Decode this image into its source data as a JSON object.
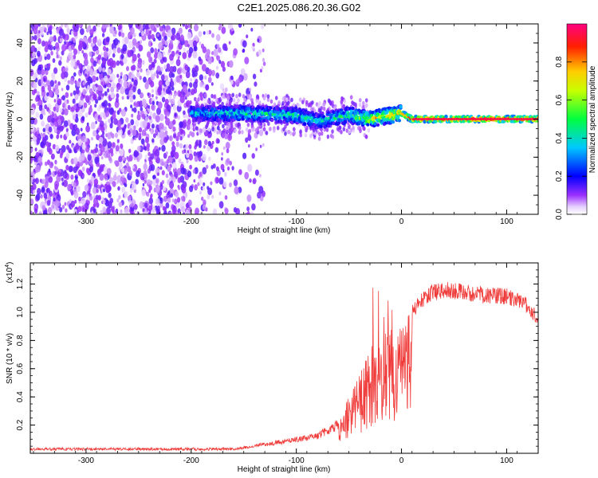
{
  "title": "C2E1.2025.086.20.36.G02",
  "chart_data": [
    {
      "type": "heatmap",
      "xlabel": "Height of straight line (km)",
      "ylabel": "Frequency (Hz)",
      "xlim": [
        -353,
        130
      ],
      "ylim": [
        -50,
        50
      ],
      "x_ticks": [
        -300,
        -200,
        -100,
        0,
        100
      ],
      "y_ticks": [
        -40,
        -20,
        0,
        20,
        40
      ],
      "colorbar": {
        "label": "Normalized spectral amplitude",
        "range": [
          0,
          1
        ],
        "ticks": [
          "0.0",
          "0.2",
          "0.4",
          "0.6",
          "0.8"
        ]
      },
      "ridge": [
        {
          "x": -200,
          "freq": 3,
          "amp": 0.35
        },
        {
          "x": -150,
          "freq": 3,
          "amp": 0.45
        },
        {
          "x": -100,
          "freq": 2,
          "amp": 0.45
        },
        {
          "x": -80,
          "freq": -1,
          "amp": 0.4
        },
        {
          "x": -50,
          "freq": 2,
          "amp": 0.5
        },
        {
          "x": -30,
          "freq": 0,
          "amp": 0.7
        },
        {
          "x": 0,
          "freq": 3,
          "amp": 0.8
        },
        {
          "x": 10,
          "freq": 0,
          "amp": 0.95
        },
        {
          "x": 130,
          "freq": 0,
          "amp": 0.95
        }
      ]
    },
    {
      "type": "line",
      "xlabel": "Height of straight line (km)",
      "ylabel": "SNR (10 * v/v)",
      "y_scale_label": "(x10",
      "y_scale_exp": "4",
      "y_scale_suffix": ")",
      "xlim": [
        -353,
        130
      ],
      "ylim": [
        0,
        1.35
      ],
      "x_ticks": [
        -300,
        -200,
        -100,
        0,
        100
      ],
      "y_ticks": [
        0.2,
        0.4,
        0.6,
        0.8,
        1.0,
        1.2
      ],
      "color": "#ef3b39",
      "series": [
        {
          "x": [
            -353,
            -300,
            -250,
            -200,
            -160,
            -140,
            -120,
            -100,
            -80,
            -60,
            -50,
            -40,
            -30,
            -20,
            -10,
            0,
            10,
            20,
            30,
            40,
            60,
            80,
            100,
            110,
            120,
            130
          ],
          "values": [
            0.03,
            0.03,
            0.03,
            0.03,
            0.03,
            0.05,
            0.09,
            0.12,
            0.15,
            0.25,
            0.4,
            0.55,
            0.75,
            0.85,
            0.9,
            0.93,
            1.05,
            1.15,
            1.2,
            1.22,
            1.2,
            1.18,
            1.17,
            1.15,
            1.1,
            1.0
          ]
        }
      ]
    }
  ]
}
